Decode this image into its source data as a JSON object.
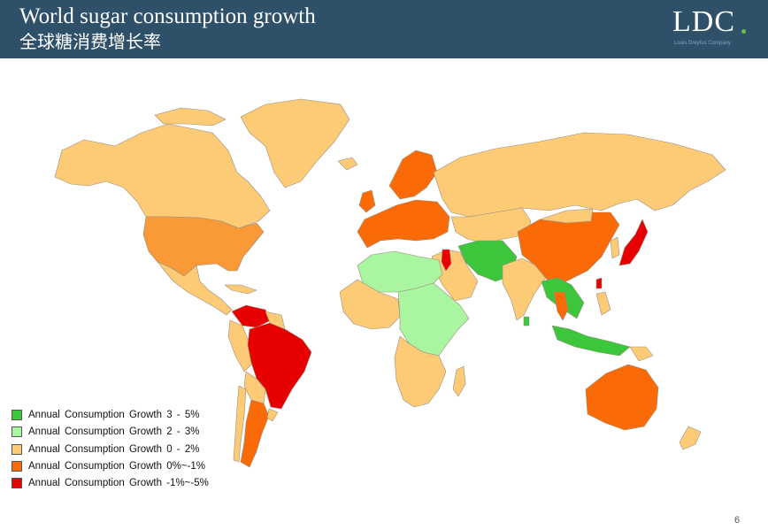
{
  "header": {
    "title_en": "World sugar consumption growth",
    "title_zh": "全球糖消费增长率"
  },
  "logo": {
    "text": "LDC",
    "subtitle": "Louis Dreyfus Company"
  },
  "colors": {
    "header_bg": "#2f5069",
    "green_dark": "#3cc63c",
    "green_light": "#aaf59f",
    "tan": "#fdca76",
    "orange": "#fa6a06",
    "red": "#e60000",
    "border": "#9a8f80"
  },
  "legend": [
    {
      "label": "Annual Consumption Growth 3 - 5%",
      "color": "#3cc63c"
    },
    {
      "label": "Annual Consumption Growth 2 - 3%",
      "color": "#aaf59f"
    },
    {
      "label": "Annual Consumption Growth 0 - 2%",
      "color": "#fdca76"
    },
    {
      "label": "Annual Consumption Growth 0%~-1%",
      "color": "#fa6a06"
    },
    {
      "label": "Annual Consumption Growth -1%~-5%",
      "color": "#e60000"
    }
  ],
  "page_number": "6"
}
